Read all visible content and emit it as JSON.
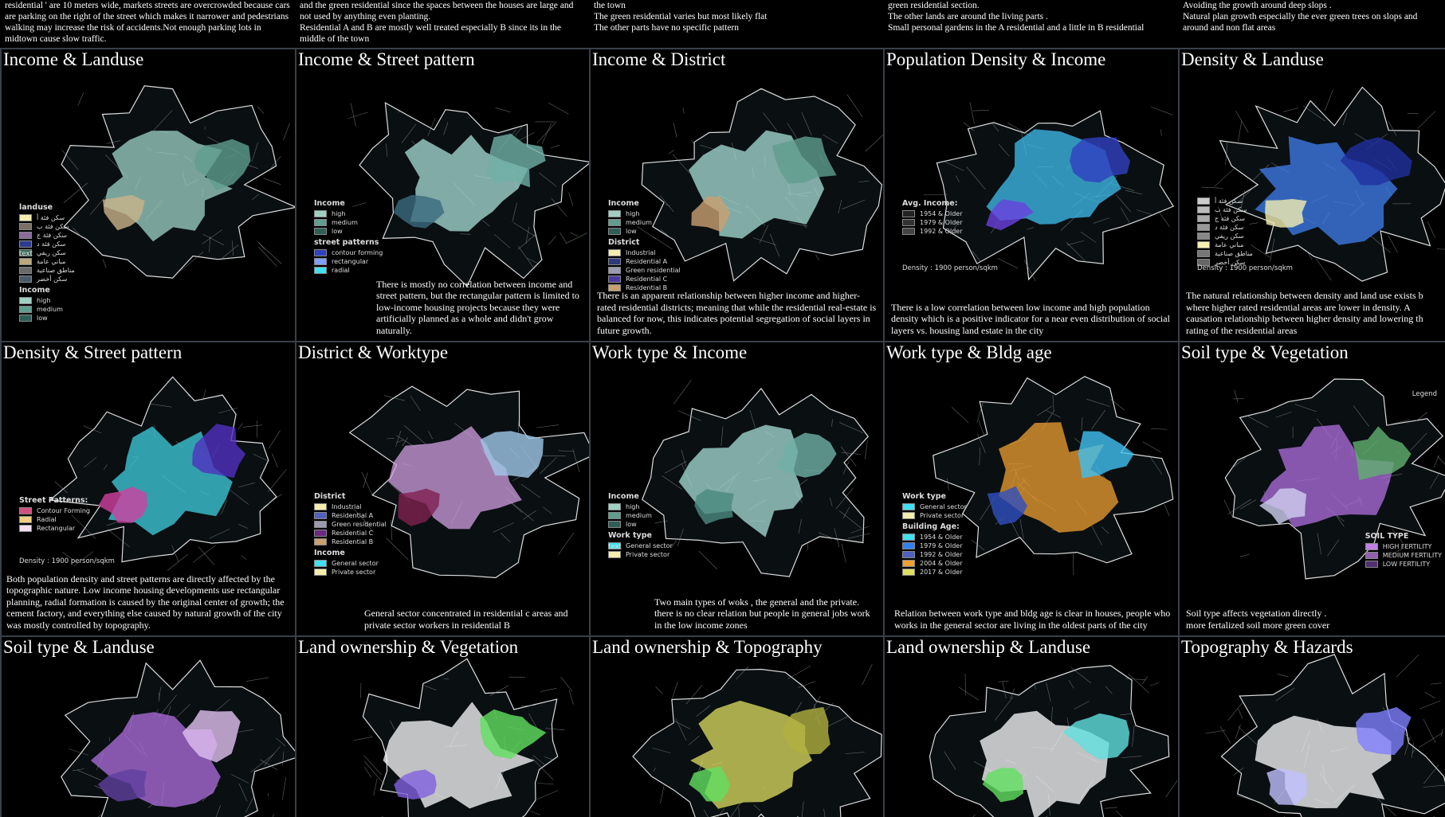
{
  "top_notes": [
    [
      "residential ' are 10 meters wide, markets streets are overcrowded because cars are parking on the right of the street which makes it narrower and pedestrians walking may increase the risk of accidents.Not enough parking lots in midtown cause slow traffic."
    ],
    [
      "and the green residential since the spaces between the houses are large and not used by anything even planting.",
      "Residential A and B are mostly well treated especially B since its in the middle of the town"
    ],
    [
      "the town",
      "The green residential varies but most likely flat",
      "The other parts have no specific pattern"
    ],
    [
      "green residential section.",
      "The other lands are around the living parts .",
      "Small personal gardens in the A residential and a little in B residential"
    ],
    [
      "Avoiding the growth around deep slops .",
      "Natural plan growth especially the ever green trees on slops and around and non flat areas"
    ]
  ],
  "panels": [
    {
      "title": "Income & Landuse",
      "legends": [
        {
          "heading": "landuse",
          "items": [
            {
              "label": "سكن فئة أ",
              "color": "#f3eeb0"
            },
            {
              "label": "سكن فئة ب",
              "color": "#7a6f66"
            },
            {
              "label": "سكن فئة ج",
              "color": "#8b6b9a"
            },
            {
              "label": "سكن فئة د",
              "color": "#2c3a8c"
            },
            {
              "label": "سكن ريفي",
              "color": "#3a6b5c"
            },
            {
              "label": "مباني عامة",
              "color": "#b9a77d"
            },
            {
              "label": "مناطق صناعية",
              "color": "#6a6a6a"
            },
            {
              "label": "سكن أخضر",
              "color": "#4a5a68"
            }
          ]
        },
        {
          "heading": "Income",
          "items": [
            {
              "label": "high",
              "color": "#9fcfc2"
            },
            {
              "label": "medium",
              "color": "#5f9e8f"
            },
            {
              "label": "low",
              "color": "#2f5e57"
            }
          ]
        }
      ],
      "notes": [
        "text"
      ],
      "caption": []
    },
    {
      "title": "Income & Street pattern",
      "legends": [
        {
          "heading": "Income",
          "items": [
            {
              "label": "high",
              "color": "#9fcfc2"
            },
            {
              "label": "medium",
              "color": "#5f9e8f"
            },
            {
              "label": "low",
              "color": "#2f5e57"
            }
          ]
        },
        {
          "heading": "street patterns",
          "items": [
            {
              "label": "contour forming",
              "color": "#3040c0"
            },
            {
              "label": "rectangular",
              "color": "#7fa0ff"
            },
            {
              "label": "radial",
              "color": "#40e0f0"
            }
          ]
        }
      ],
      "notes": [],
      "caption": [
        "There is mostly no correlation between income and street pattern, but the rectangular pattern is limited to low-income housing projects because they were artificially planned as a whole and didn't grow naturally."
      ]
    },
    {
      "title": "Income & District",
      "legends": [
        {
          "heading": "Income",
          "items": [
            {
              "label": "high",
              "color": "#9fcfc2"
            },
            {
              "label": "medium",
              "color": "#5f9e8f"
            },
            {
              "label": "low",
              "color": "#2f5e57"
            }
          ]
        },
        {
          "heading": "District",
          "items": [
            {
              "label": "Industrial",
              "color": "#f3eeb0"
            },
            {
              "label": "Residential A",
              "color": "#2d3a80"
            },
            {
              "label": "Green residential",
              "color": "#9a9ab0"
            },
            {
              "label": "Residential C",
              "color": "#4a3aa0"
            },
            {
              "label": "Residential B",
              "color": "#c9a070"
            }
          ]
        }
      ],
      "notes": [],
      "caption": [
        "There is an apparent relationship between higher income and higher-rated residential districts; meaning that while the residential real-estate is balanced for now, this indicates potential segregation of social layers in future growth."
      ]
    },
    {
      "title": "Population Density & Income",
      "legends": [
        {
          "heading": "Avg. Income:",
          "items": [
            {
              "label": "1954 & Older",
              "color": "#222222"
            },
            {
              "label": "1979 & Older",
              "color": "#333333"
            },
            {
              "label": "1992 & Older",
              "color": "#444444"
            }
          ]
        }
      ],
      "notes": [
        "Density : 1900 person/sqkm"
      ],
      "caption": [
        "There is a low correlation between low income and high population density which is a positive indicator for a near even distribution of social layers vs. housing land estate  in the city"
      ]
    },
    {
      "title": "Density & Landuse",
      "legends": [
        {
          "heading": "",
          "items": [
            {
              "label": "سكن فئة أ",
              "color": "#cccccc"
            },
            {
              "label": "سكن فئة ب",
              "color": "#bbbbbb"
            },
            {
              "label": "سكن فئة ج",
              "color": "#aaaaaa"
            },
            {
              "label": "سكن فئة د",
              "color": "#999999"
            },
            {
              "label": "سكن ريفي",
              "color": "#888888"
            },
            {
              "label": "مباني عامة",
              "color": "#f3eeb0"
            },
            {
              "label": "مناطق صناعية",
              "color": "#777777"
            },
            {
              "label": "سكن أخضر",
              "color": "#666666"
            }
          ]
        }
      ],
      "notes": [
        "Density : 1900 person/sqkm"
      ],
      "caption": [
        "The natural relationship between density and land use exists b where higher rated residential areas are lower in density. A causation relationship between higher density and lowering th rating of the residential areas"
      ]
    },
    {
      "title": "Density & Street pattern",
      "legends": [
        {
          "heading": "Street Patterns:",
          "items": [
            {
              "label": "Contour Forming",
              "color": "#d05080"
            },
            {
              "label": "Radial",
              "color": "#f0d080"
            },
            {
              "label": "Rectangular",
              "color": "#f0e0f0"
            }
          ]
        }
      ],
      "notes": [
        "Density : 1900 person/sqkm"
      ],
      "caption": [
        "Both population density and street patterns are directly affected by the topographic nature. Low income housing developments use rectangular planning, radial formation is caused by the original center of growth; the cement factory, and everything else caused by natural growth of the city was mostly controlled by topography."
      ]
    },
    {
      "title": "District & Worktype",
      "legends": [
        {
          "heading": "District",
          "items": [
            {
              "label": "Industrial",
              "color": "#f3eeb0"
            },
            {
              "label": "Residential A",
              "color": "#5060c0"
            },
            {
              "label": "Green residential",
              "color": "#9a9ab0"
            },
            {
              "label": "Residential C",
              "color": "#6a2a80"
            },
            {
              "label": "Residential B",
              "color": "#c9a070"
            }
          ]
        },
        {
          "heading": "Income",
          "items": [
            {
              "label": "General sector",
              "color": "#40e0f0"
            },
            {
              "label": "Private sector",
              "color": "#f3eeb0"
            }
          ]
        }
      ],
      "notes": [],
      "caption": [
        "General sector concentrated in residential c areas and private sector workers in residential B"
      ]
    },
    {
      "title": "Work type & Income",
      "legends": [
        {
          "heading": "Income",
          "items": [
            {
              "label": "high",
              "color": "#9fcfc2"
            },
            {
              "label": "medium",
              "color": "#5f9e8f"
            },
            {
              "label": "low",
              "color": "#2f5e57"
            }
          ]
        },
        {
          "heading": "Work type",
          "items": [
            {
              "label": "General sector",
              "color": "#40e0f0"
            },
            {
              "label": "Private sector",
              "color": "#f3eeb0"
            }
          ]
        }
      ],
      "notes": [
        "text"
      ],
      "caption": [
        "Two main types of woks , the general and the private.",
        "there is no clear relation but people in general jobs work in the low income zones"
      ]
    },
    {
      "title": "Work type & Bldg age",
      "legends": [
        {
          "heading": "Work type",
          "items": [
            {
              "label": "General sector",
              "color": "#40e0f0"
            },
            {
              "label": "Private sector",
              "color": "#f3eeb0"
            }
          ]
        },
        {
          "heading": "Building Age:",
          "items": [
            {
              "label": "1954 & Older",
              "color": "#40e0f0"
            },
            {
              "label": "1979 & Older",
              "color": "#3080f0"
            },
            {
              "label": "1992 & Older",
              "color": "#5060c0"
            },
            {
              "label": "2004 & Older",
              "color": "#f0a030"
            },
            {
              "label": "2017 & Older",
              "color": "#e0e060"
            }
          ]
        }
      ],
      "notes": [],
      "caption": [
        "Relation between work type and bldg age is clear in houses, people who works in the general sector are living in the oldest parts of the city"
      ]
    },
    {
      "title": "Soil type & Vegetation",
      "legends": [
        {
          "heading": "SOIL TYPE",
          "items": [
            {
              "label": "HIGH FERTILITY",
              "color": "#c080e0"
            },
            {
              "label": "MEDIUM FERTILITY",
              "color": "#9060b0"
            },
            {
              "label": "LOW FERTILITY",
              "color": "#503070"
            }
          ]
        }
      ],
      "notes": [
        "Legend"
      ],
      "caption": [
        "Soil type affects vegetation directly .",
        "more fertalized soil more green cover"
      ]
    },
    {
      "title": "Soil type & Landuse",
      "legends": [],
      "notes": [],
      "caption": []
    },
    {
      "title": "Land ownership & Vegetation",
      "legends": [],
      "notes": [],
      "caption": []
    },
    {
      "title": "Land ownership & Topography",
      "legends": [],
      "notes": [],
      "caption": []
    },
    {
      "title": "Land ownership & Landuse",
      "legends": [],
      "notes": [],
      "caption": []
    },
    {
      "title": "Topography & Hazards",
      "legends": [],
      "notes": [],
      "caption": []
    }
  ]
}
